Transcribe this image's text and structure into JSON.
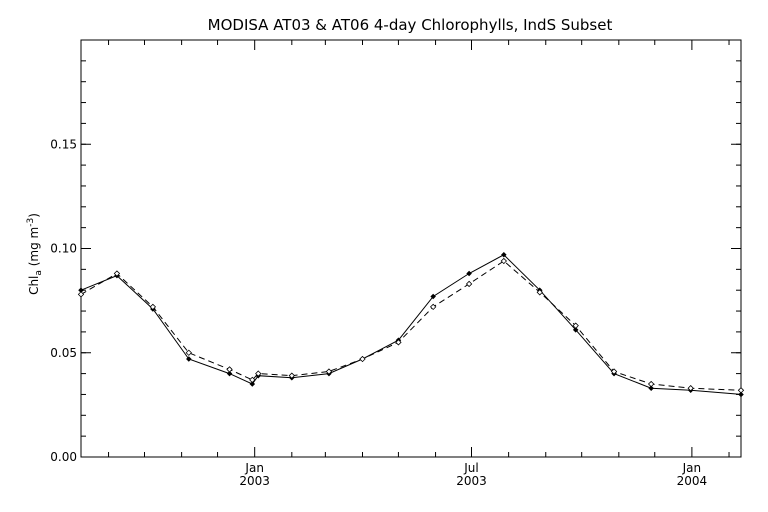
{
  "chart_data": {
    "type": "line",
    "title": "MODISA AT03 & AT06 4-day Chlorophylls, IndS Subset",
    "ylabel_main": "Chl",
    "ylabel_sub": "a",
    "ylabel_units_pre": "(mg m",
    "ylabel_units_sup": "-3",
    "ylabel_units_post": ")",
    "xlim": [
      "2002-08-09",
      "2004-02-11"
    ],
    "ylim": [
      0,
      0.2
    ],
    "yticks": [
      {
        "value": 0.0,
        "label": "0.00"
      },
      {
        "value": 0.05,
        "label": "0.05"
      },
      {
        "value": 0.1,
        "label": "0.10"
      },
      {
        "value": 0.15,
        "label": "0.15"
      }
    ],
    "xticks_major": [
      {
        "date": "2003-01-01",
        "month": "Jan",
        "year": "2003"
      },
      {
        "date": "2003-07-01",
        "month": "Jul",
        "year": "2003"
      },
      {
        "date": "2004-01-01",
        "month": "Jan",
        "year": "2004"
      }
    ],
    "xticks_minor": [
      "2002-09-01",
      "2002-10-01",
      "2002-11-01",
      "2002-12-01",
      "2003-02-01",
      "2003-03-01",
      "2003-04-01",
      "2003-05-01",
      "2003-06-01",
      "2003-08-01",
      "2003-09-01",
      "2003-10-01",
      "2003-11-01",
      "2003-12-01",
      "2004-02-01"
    ],
    "grid": false,
    "series": [
      {
        "style": "solid",
        "x": [
          "2002-08-09",
          "2002-09-08",
          "2002-10-08",
          "2002-11-07",
          "2002-12-11",
          "2002-12-30",
          "2003-01-04",
          "2003-02-01",
          "2003-03-04",
          "2003-04-01",
          "2003-05-01",
          "2003-05-30",
          "2003-06-29",
          "2003-07-28",
          "2003-08-27",
          "2003-09-26",
          "2003-10-28",
          "2003-11-28",
          "2003-12-31",
          "2004-02-11"
        ],
        "y": [
          0.08,
          0.087,
          0.071,
          0.047,
          0.04,
          0.035,
          0.039,
          0.038,
          0.04,
          0.047,
          0.056,
          0.077,
          0.088,
          0.097,
          0.08,
          0.061,
          0.04,
          0.033,
          0.032,
          0.03
        ]
      },
      {
        "style": "dashed",
        "x": [
          "2002-08-09",
          "2002-09-08",
          "2002-10-08",
          "2002-11-07",
          "2002-12-11",
          "2002-12-30",
          "2003-01-04",
          "2003-02-01",
          "2003-03-04",
          "2003-04-01",
          "2003-05-01",
          "2003-05-30",
          "2003-06-29",
          "2003-07-28",
          "2003-08-27",
          "2003-09-26",
          "2003-10-28",
          "2003-11-28",
          "2003-12-31",
          "2004-02-11"
        ],
        "y": [
          0.078,
          0.088,
          0.072,
          0.05,
          0.042,
          0.037,
          0.04,
          0.039,
          0.041,
          0.047,
          0.055,
          0.072,
          0.083,
          0.094,
          0.079,
          0.063,
          0.041,
          0.035,
          0.033,
          0.032
        ]
      }
    ]
  }
}
